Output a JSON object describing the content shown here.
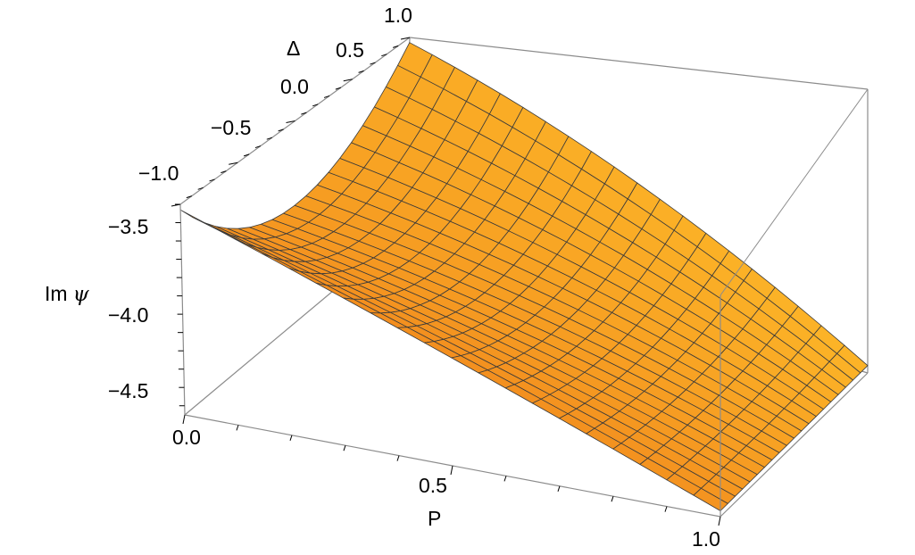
{
  "chart_data": {
    "type": "surface3d",
    "x_axis": {
      "label": "P",
      "range": [
        0,
        1
      ],
      "ticks": [
        "0.0",
        "0.5",
        "1.0"
      ],
      "tick_values": [
        0,
        0.5,
        1
      ]
    },
    "y_axis": {
      "label": "Δ",
      "range": [
        -1,
        1
      ],
      "ticks": [
        "-1.0",
        "-0.5",
        "0.0",
        "0.5",
        "1.0"
      ],
      "tick_values": [
        -1,
        -0.5,
        0,
        0.5,
        1
      ]
    },
    "z_axis": {
      "label_main": "Im",
      "label_symbol": "ψ",
      "range": [
        -4.6,
        -3.45
      ],
      "ticks": [
        "-3.5",
        "-4.0",
        "-4.5"
      ],
      "tick_values": [
        -3.5,
        -4.0,
        -4.5
      ]
    },
    "surface_corners": [
      {
        "P": 0,
        "Delta": -1,
        "value": -3.48
      },
      {
        "P": 0,
        "Delta": 1,
        "value": -3.48
      },
      {
        "P": 1,
        "Delta": -1,
        "value": -4.57
      },
      {
        "P": 1,
        "Delta": 1,
        "value": -4.57
      }
    ],
    "surface_trough": [
      {
        "P": 0,
        "Delta": 0,
        "value": -3.93
      },
      {
        "P": 0.5,
        "Delta": 0,
        "value": -4.21
      },
      {
        "P": 1,
        "Delta": 0,
        "value": -4.57
      }
    ],
    "grid": true,
    "colors": {
      "surface_light": "#ffc02a",
      "surface_dark": "#f0841c",
      "mesh": "#3a3a3a",
      "box": "#8c8c8c"
    }
  }
}
